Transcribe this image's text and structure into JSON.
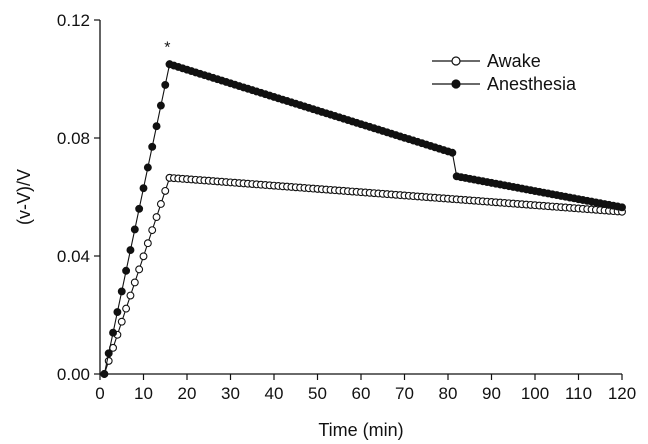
{
  "chart_data": {
    "type": "line",
    "title": "",
    "xlabel": "Time (min)",
    "ylabel": "(v-V)/V",
    "xlim": [
      0,
      120
    ],
    "ylim": [
      0,
      0.12
    ],
    "x_ticks": [
      0,
      10,
      20,
      30,
      40,
      50,
      60,
      70,
      80,
      90,
      100,
      110,
      120
    ],
    "y_ticks": [
      0.0,
      0.04,
      0.08,
      0.12
    ],
    "y_tick_labels": [
      "0.00",
      "0.04",
      "0.08",
      "0.12"
    ],
    "grid": false,
    "legend_position": "top-right",
    "annotations": [
      {
        "text": "*",
        "x": 15.5,
        "y": 0.109
      }
    ],
    "series": [
      {
        "name": "Awake",
        "marker": "open-circle",
        "color": "#111111",
        "segments": [
          {
            "x_start": 1,
            "x_end": 16,
            "y_start": 0.0,
            "y_end": 0.0665
          },
          {
            "x_start": 16,
            "x_end": 120,
            "y_start": 0.0665,
            "y_end": 0.055
          }
        ]
      },
      {
        "name": "Anesthesia",
        "marker": "filled-circle",
        "color": "#111111",
        "segments": [
          {
            "x_start": 1,
            "x_end": 16,
            "y_start": 0.0,
            "y_end": 0.105
          },
          {
            "x_start": 16,
            "x_end": 81,
            "y_start": 0.105,
            "y_end": 0.075
          },
          {
            "x_start": 82,
            "x_end": 120,
            "y_start": 0.067,
            "y_end": 0.0565
          }
        ]
      }
    ]
  }
}
